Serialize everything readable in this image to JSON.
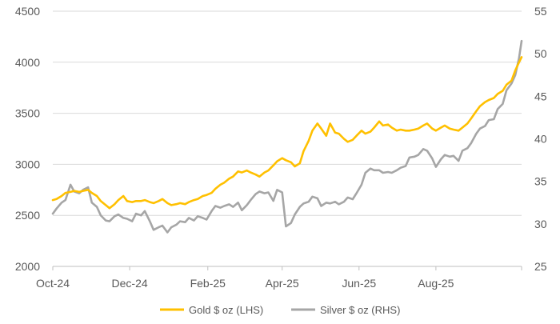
{
  "chart_data": {
    "type": "line",
    "x_axis": {
      "type": "date",
      "range": [
        "2024-10-01",
        "2025-10-08"
      ],
      "tick_dates": [
        "2024-10-01",
        "2024-12-01",
        "2025-02-01",
        "2025-04-01",
        "2025-06-01",
        "2025-08-01"
      ],
      "tick_labels": [
        "Oct-24",
        "Dec-24",
        "Feb-25",
        "Apr-25",
        "Jun-25",
        "Aug-25"
      ]
    },
    "y_left": {
      "ylim": [
        2000,
        4500
      ],
      "ticks": [
        2000,
        2500,
        3000,
        3500,
        4000,
        4500
      ],
      "tick_labels": [
        "2000",
        "2500",
        "3000",
        "3500",
        "4000",
        "4500"
      ]
    },
    "y_right": {
      "ylim": [
        25,
        55
      ],
      "ticks": [
        25,
        30,
        35,
        40,
        45,
        50,
        55
      ],
      "tick_labels": [
        "25",
        "30",
        "35",
        "40",
        "45",
        "50",
        "55"
      ]
    },
    "grid": "horizontal (left axis)",
    "legend_position": "bottom",
    "series": [
      {
        "name": "Gold $ oz (LHS)",
        "axis": "left",
        "color": "#ffc000",
        "points": [
          [
            "2024-10-01",
            2650
          ],
          [
            "2024-10-04",
            2660
          ],
          [
            "2024-10-08",
            2690
          ],
          [
            "2024-10-11",
            2720
          ],
          [
            "2024-10-15",
            2730
          ],
          [
            "2024-10-18",
            2740
          ],
          [
            "2024-10-22",
            2730
          ],
          [
            "2024-10-25",
            2740
          ],
          [
            "2024-10-29",
            2750
          ],
          [
            "2024-11-01",
            2720
          ],
          [
            "2024-11-05",
            2690
          ],
          [
            "2024-11-08",
            2640
          ],
          [
            "2024-11-12",
            2600
          ],
          [
            "2024-11-15",
            2570
          ],
          [
            "2024-11-19",
            2610
          ],
          [
            "2024-11-22",
            2650
          ],
          [
            "2024-11-26",
            2690
          ],
          [
            "2024-11-29",
            2640
          ],
          [
            "2024-12-03",
            2630
          ],
          [
            "2024-12-06",
            2640
          ],
          [
            "2024-12-10",
            2640
          ],
          [
            "2024-12-13",
            2650
          ],
          [
            "2024-12-17",
            2630
          ],
          [
            "2024-12-20",
            2620
          ],
          [
            "2024-12-24",
            2640
          ],
          [
            "2024-12-27",
            2660
          ],
          [
            "2024-12-31",
            2620
          ],
          [
            "2025-01-03",
            2600
          ],
          [
            "2025-01-07",
            2610
          ],
          [
            "2025-01-10",
            2620
          ],
          [
            "2025-01-14",
            2610
          ],
          [
            "2025-01-17",
            2630
          ],
          [
            "2025-01-21",
            2650
          ],
          [
            "2025-01-24",
            2660
          ],
          [
            "2025-01-28",
            2690
          ],
          [
            "2025-01-31",
            2700
          ],
          [
            "2025-02-04",
            2720
          ],
          [
            "2025-02-07",
            2760
          ],
          [
            "2025-02-11",
            2800
          ],
          [
            "2025-02-14",
            2820
          ],
          [
            "2025-02-18",
            2860
          ],
          [
            "2025-02-21",
            2880
          ],
          [
            "2025-02-25",
            2930
          ],
          [
            "2025-02-28",
            2920
          ],
          [
            "2025-03-04",
            2940
          ],
          [
            "2025-03-07",
            2920
          ],
          [
            "2025-03-11",
            2900
          ],
          [
            "2025-03-14",
            2880
          ],
          [
            "2025-03-18",
            2920
          ],
          [
            "2025-03-21",
            2940
          ],
          [
            "2025-03-25",
            2990
          ],
          [
            "2025-03-28",
            3030
          ],
          [
            "2025-04-01",
            3060
          ],
          [
            "2025-04-04",
            3040
          ],
          [
            "2025-04-08",
            3020
          ],
          [
            "2025-04-11",
            2980
          ],
          [
            "2025-04-15",
            3010
          ],
          [
            "2025-04-18",
            3130
          ],
          [
            "2025-04-22",
            3230
          ],
          [
            "2025-04-25",
            3330
          ],
          [
            "2025-04-29",
            3400
          ],
          [
            "2025-05-02",
            3350
          ],
          [
            "2025-05-06",
            3280
          ],
          [
            "2025-05-09",
            3400
          ],
          [
            "2025-05-13",
            3310
          ],
          [
            "2025-05-16",
            3300
          ],
          [
            "2025-05-20",
            3250
          ],
          [
            "2025-05-23",
            3220
          ],
          [
            "2025-05-27",
            3240
          ],
          [
            "2025-05-30",
            3280
          ],
          [
            "2025-06-03",
            3330
          ],
          [
            "2025-06-06",
            3300
          ],
          [
            "2025-06-10",
            3320
          ],
          [
            "2025-06-13",
            3360
          ],
          [
            "2025-06-17",
            3420
          ],
          [
            "2025-06-20",
            3380
          ],
          [
            "2025-06-24",
            3390
          ],
          [
            "2025-06-27",
            3360
          ],
          [
            "2025-07-01",
            3330
          ],
          [
            "2025-07-04",
            3340
          ],
          [
            "2025-07-08",
            3330
          ],
          [
            "2025-07-11",
            3330
          ],
          [
            "2025-07-15",
            3340
          ],
          [
            "2025-07-18",
            3350
          ],
          [
            "2025-07-22",
            3380
          ],
          [
            "2025-07-25",
            3400
          ],
          [
            "2025-07-29",
            3350
          ],
          [
            "2025-08-01",
            3330
          ],
          [
            "2025-08-05",
            3360
          ],
          [
            "2025-08-08",
            3380
          ],
          [
            "2025-08-12",
            3350
          ],
          [
            "2025-08-15",
            3340
          ],
          [
            "2025-08-19",
            3330
          ],
          [
            "2025-08-22",
            3360
          ],
          [
            "2025-08-26",
            3400
          ],
          [
            "2025-08-29",
            3450
          ],
          [
            "2025-09-02",
            3520
          ],
          [
            "2025-09-05",
            3570
          ],
          [
            "2025-09-09",
            3610
          ],
          [
            "2025-09-12",
            3630
          ],
          [
            "2025-09-16",
            3650
          ],
          [
            "2025-09-19",
            3690
          ],
          [
            "2025-09-23",
            3720
          ],
          [
            "2025-09-26",
            3780
          ],
          [
            "2025-09-30",
            3820
          ],
          [
            "2025-10-03",
            3920
          ],
          [
            "2025-10-06",
            4000
          ],
          [
            "2025-10-08",
            4050
          ]
        ]
      },
      {
        "name": "Silver $ oz (RHS)",
        "axis": "right",
        "color": "#a6a6a6",
        "points": [
          [
            "2024-10-01",
            31.2
          ],
          [
            "2024-10-04",
            31.8
          ],
          [
            "2024-10-08",
            32.5
          ],
          [
            "2024-10-11",
            32.8
          ],
          [
            "2024-10-15",
            34.6
          ],
          [
            "2024-10-18",
            33.8
          ],
          [
            "2024-10-22",
            33.6
          ],
          [
            "2024-10-25",
            34.0
          ],
          [
            "2024-10-29",
            34.3
          ],
          [
            "2024-11-01",
            32.5
          ],
          [
            "2024-11-05",
            32.0
          ],
          [
            "2024-11-08",
            31.0
          ],
          [
            "2024-11-12",
            30.4
          ],
          [
            "2024-11-15",
            30.3
          ],
          [
            "2024-11-19",
            30.9
          ],
          [
            "2024-11-22",
            31.1
          ],
          [
            "2024-11-26",
            30.7
          ],
          [
            "2024-11-29",
            30.6
          ],
          [
            "2024-12-03",
            30.3
          ],
          [
            "2024-12-06",
            31.2
          ],
          [
            "2024-12-10",
            31.0
          ],
          [
            "2024-12-13",
            31.5
          ],
          [
            "2024-12-17",
            30.3
          ],
          [
            "2024-12-20",
            29.3
          ],
          [
            "2024-12-24",
            29.6
          ],
          [
            "2024-12-27",
            29.8
          ],
          [
            "2024-12-31",
            29.0
          ],
          [
            "2025-01-03",
            29.6
          ],
          [
            "2025-01-07",
            29.9
          ],
          [
            "2025-01-10",
            30.3
          ],
          [
            "2025-01-14",
            30.2
          ],
          [
            "2025-01-17",
            30.7
          ],
          [
            "2025-01-21",
            30.4
          ],
          [
            "2025-01-24",
            30.9
          ],
          [
            "2025-01-28",
            30.7
          ],
          [
            "2025-01-31",
            30.5
          ],
          [
            "2025-02-04",
            31.5
          ],
          [
            "2025-02-07",
            32.1
          ],
          [
            "2025-02-11",
            31.9
          ],
          [
            "2025-02-14",
            32.1
          ],
          [
            "2025-02-18",
            32.3
          ],
          [
            "2025-02-21",
            32.0
          ],
          [
            "2025-02-25",
            32.5
          ],
          [
            "2025-02-28",
            31.6
          ],
          [
            "2025-03-04",
            32.2
          ],
          [
            "2025-03-07",
            32.8
          ],
          [
            "2025-03-11",
            33.5
          ],
          [
            "2025-03-14",
            33.8
          ],
          [
            "2025-03-18",
            33.6
          ],
          [
            "2025-03-21",
            33.7
          ],
          [
            "2025-03-25",
            32.7
          ],
          [
            "2025-03-28",
            34.0
          ],
          [
            "2025-04-01",
            33.7
          ],
          [
            "2025-04-04",
            29.7
          ],
          [
            "2025-04-08",
            30.1
          ],
          [
            "2025-04-11",
            31.1
          ],
          [
            "2025-04-15",
            32.0
          ],
          [
            "2025-04-18",
            32.4
          ],
          [
            "2025-04-22",
            32.6
          ],
          [
            "2025-04-25",
            33.2
          ],
          [
            "2025-04-29",
            33.0
          ],
          [
            "2025-05-02",
            32.1
          ],
          [
            "2025-05-06",
            32.5
          ],
          [
            "2025-05-09",
            32.4
          ],
          [
            "2025-05-13",
            32.6
          ],
          [
            "2025-05-16",
            32.3
          ],
          [
            "2025-05-20",
            32.6
          ],
          [
            "2025-05-23",
            33.1
          ],
          [
            "2025-05-27",
            32.9
          ],
          [
            "2025-05-30",
            33.6
          ],
          [
            "2025-06-03",
            34.6
          ],
          [
            "2025-06-06",
            36.0
          ],
          [
            "2025-06-10",
            36.5
          ],
          [
            "2025-06-13",
            36.3
          ],
          [
            "2025-06-17",
            36.3
          ],
          [
            "2025-06-20",
            36.0
          ],
          [
            "2025-06-24",
            36.1
          ],
          [
            "2025-06-27",
            36.0
          ],
          [
            "2025-07-01",
            36.3
          ],
          [
            "2025-07-04",
            36.6
          ],
          [
            "2025-07-08",
            36.8
          ],
          [
            "2025-07-11",
            37.8
          ],
          [
            "2025-07-15",
            37.9
          ],
          [
            "2025-07-18",
            38.1
          ],
          [
            "2025-07-22",
            38.8
          ],
          [
            "2025-07-25",
            38.6
          ],
          [
            "2025-07-29",
            37.7
          ],
          [
            "2025-08-01",
            36.7
          ],
          [
            "2025-08-05",
            37.6
          ],
          [
            "2025-08-08",
            38.1
          ],
          [
            "2025-08-12",
            37.9
          ],
          [
            "2025-08-15",
            38.0
          ],
          [
            "2025-08-19",
            37.4
          ],
          [
            "2025-08-22",
            38.6
          ],
          [
            "2025-08-26",
            38.9
          ],
          [
            "2025-08-29",
            39.5
          ],
          [
            "2025-09-02",
            40.6
          ],
          [
            "2025-09-05",
            41.2
          ],
          [
            "2025-09-09",
            41.5
          ],
          [
            "2025-09-12",
            42.2
          ],
          [
            "2025-09-16",
            42.3
          ],
          [
            "2025-09-19",
            43.5
          ],
          [
            "2025-09-23",
            44.1
          ],
          [
            "2025-09-26",
            45.7
          ],
          [
            "2025-09-30",
            46.5
          ],
          [
            "2025-10-03",
            47.5
          ],
          [
            "2025-10-06",
            49.5
          ],
          [
            "2025-10-08",
            51.5
          ]
        ]
      }
    ]
  }
}
